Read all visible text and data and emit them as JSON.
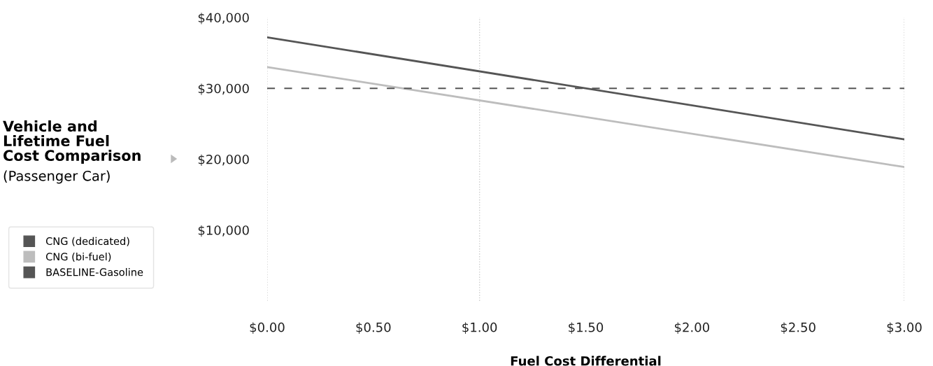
{
  "chart_data": {
    "type": "line",
    "title": "Vehicle and\nLifetime Fuel\nCost Comparison",
    "subtitle": "(Passenger Car)",
    "xlabel": "Fuel Cost Differential",
    "x": [
      0,
      3
    ],
    "series": [
      {
        "name": "CNG (dedicated)",
        "color": "#555555",
        "values": [
          37200,
          22800
        ]
      },
      {
        "name": "CNG (bi-fuel)",
        "color": "#bdbdbd",
        "values": [
          33000,
          18900
        ]
      },
      {
        "name": "BASELINE-Gasoline",
        "color": "#555555",
        "values": [
          30000,
          30000
        ],
        "line_style": "dashed"
      }
    ],
    "xlim": [
      0,
      3
    ],
    "xticks": [
      {
        "value": 0,
        "label": "$0.00"
      },
      {
        "value": 0.5,
        "label": "$0.50"
      },
      {
        "value": 1,
        "label": "$1.00"
      },
      {
        "value": 1.5,
        "label": "$1.50"
      },
      {
        "value": 2,
        "label": "$2.00"
      },
      {
        "value": 2.5,
        "label": "$2.50"
      },
      {
        "value": 3,
        "label": "$3.00"
      }
    ],
    "ylim": [
      0,
      40000
    ],
    "yticks": [
      {
        "value": 10000,
        "label": "$10,000"
      },
      {
        "value": 20000,
        "label": "$20,000"
      },
      {
        "value": 30000,
        "label": "$30,000"
      },
      {
        "value": 40000,
        "label": "$40,000"
      }
    ],
    "ref_lines": [
      {
        "axis": "x",
        "value": 0,
        "color": "#cccccc",
        "line_style": "dotted"
      },
      {
        "axis": "x",
        "value": 1,
        "color": "#cccccc",
        "line_style": "dotted"
      },
      {
        "axis": "x",
        "value": 3,
        "color": "#cccccc",
        "line_style": "dotted"
      }
    ],
    "legend": "left",
    "grid": false
  }
}
